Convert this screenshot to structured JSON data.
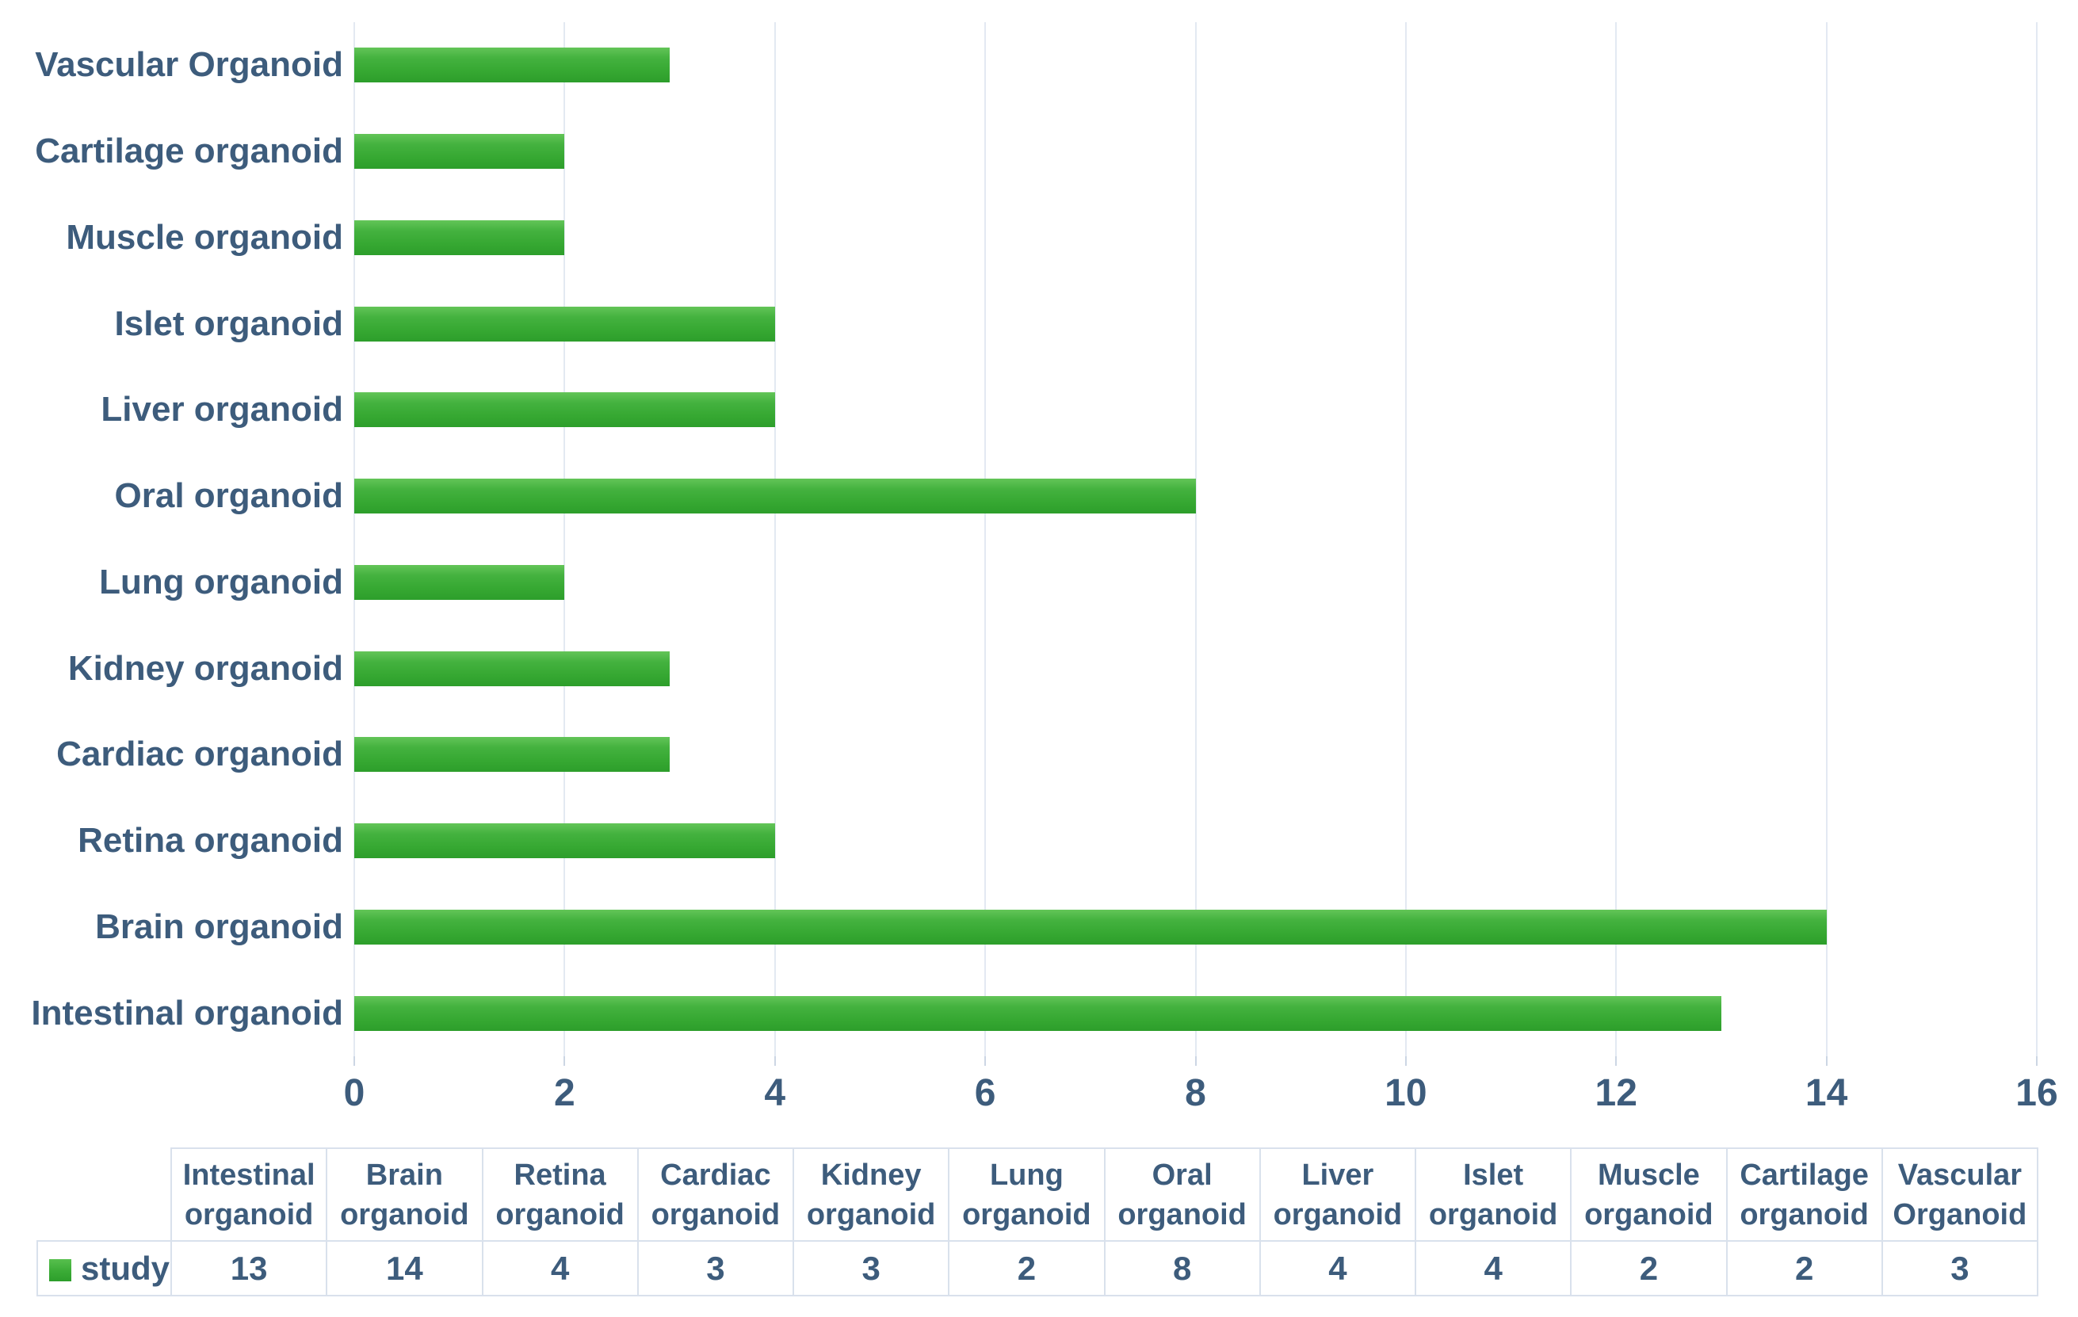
{
  "chart_data": {
    "type": "bar",
    "orientation": "horizontal",
    "title": "",
    "xlabel": "",
    "ylabel": "",
    "xlim": [
      0,
      16
    ],
    "x_ticks": [
      0,
      2,
      4,
      6,
      8,
      10,
      12,
      14,
      16
    ],
    "grid": true,
    "categories_top_to_bottom": [
      "Vascular Organoid",
      "Cartilage organoid",
      "Muscle organoid",
      "Islet organoid",
      "Liver organoid",
      "Oral organoid",
      "Lung organoid",
      "Kidney organoid",
      "Cardiac organoid",
      "Retina organoid",
      "Brain organoid",
      "Intestinal organoid"
    ],
    "series": [
      {
        "name": "study",
        "values_top_to_bottom": [
          3,
          2,
          2,
          4,
          4,
          8,
          2,
          3,
          3,
          4,
          14,
          13
        ]
      }
    ]
  },
  "data_table": {
    "legend": {
      "series_label": "study"
    },
    "columns": [
      "Intestinal organoid",
      "Brain organoid",
      "Retina organoid",
      "Cardiac organoid",
      "Kidney organoid",
      "Lung organoid",
      "Oral organoid",
      "Liver organoid",
      "Islet organoid",
      "Muscle organoid",
      "Cartilage organoid",
      "Vascular Organoid"
    ],
    "rows": [
      {
        "label": "study",
        "values": [
          13,
          14,
          4,
          3,
          3,
          2,
          8,
          4,
          4,
          2,
          2,
          3
        ]
      }
    ]
  },
  "colors": {
    "bar_green_top": "#63c558",
    "bar_green_bottom": "#2d9e2b",
    "text_blue": "#3d5c7c",
    "gridline": "#e3e9f2",
    "table_border": "#d9e1ec",
    "background": "#ffffff"
  }
}
